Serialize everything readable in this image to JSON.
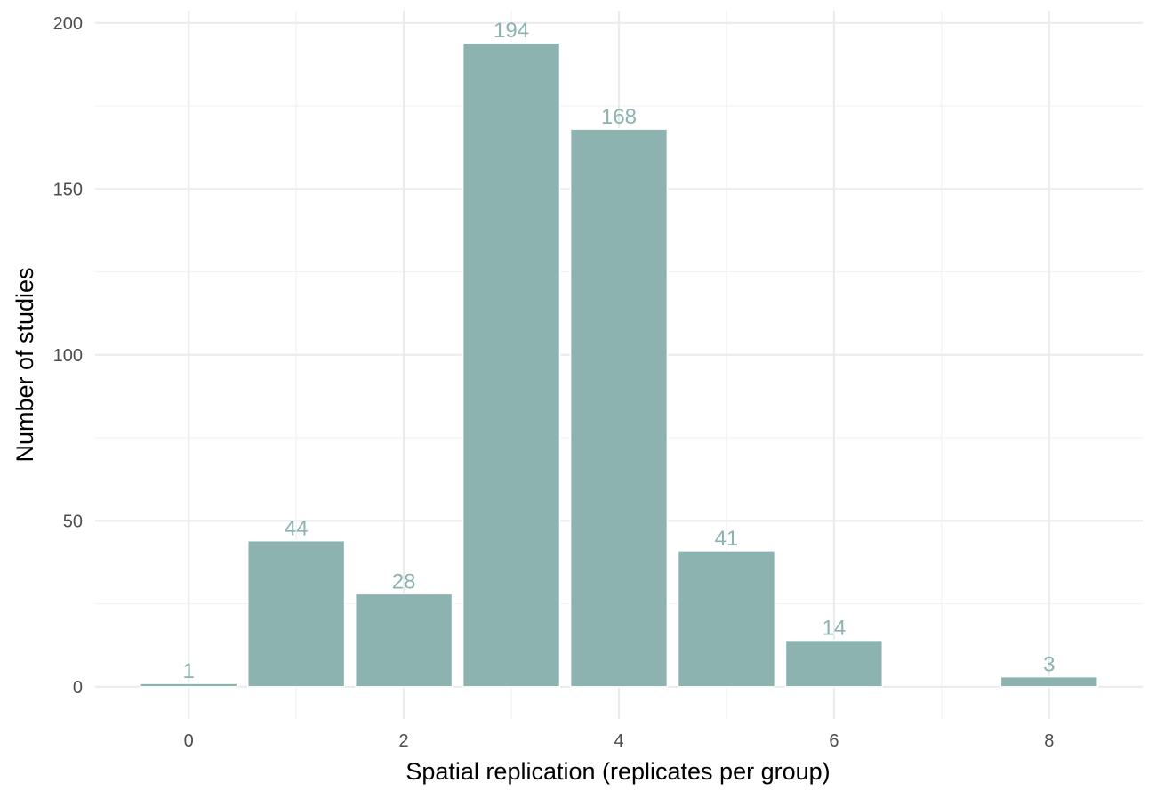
{
  "chart_data": {
    "type": "bar",
    "title": "",
    "xlabel": "Spatial replication (replicates per group)",
    "ylabel": "Number of studies",
    "x": [
      0,
      1,
      2,
      3,
      4,
      5,
      6,
      8
    ],
    "values": [
      1,
      44,
      28,
      194,
      168,
      41,
      14,
      3
    ],
    "data_labels": [
      "1",
      "44",
      "28",
      "194",
      "168",
      "41",
      "14",
      "3"
    ],
    "xlim": [
      -0.87,
      8.87
    ],
    "ylim": [
      -9.7,
      203.7
    ],
    "x_ticks": [
      0,
      2,
      4,
      6,
      8
    ],
    "x_tick_labels": [
      "0",
      "2",
      "4",
      "6",
      "8"
    ],
    "y_ticks": [
      0,
      50,
      100,
      150,
      200
    ],
    "y_tick_labels": [
      "0",
      "50",
      "100",
      "150",
      "200"
    ],
    "grid": true,
    "legend": "none",
    "colors": {
      "bar": "#8db3b1",
      "label": "#8db3b1"
    }
  }
}
